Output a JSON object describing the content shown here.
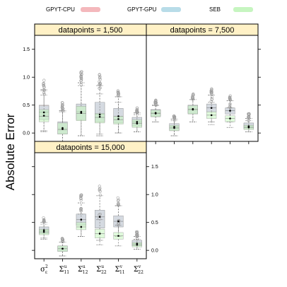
{
  "chart_data": {
    "type": "boxplot",
    "ylabel": "Absolute Error",
    "ylim": [
      -0.15,
      1.75
    ],
    "yticks": [
      0.0,
      0.5,
      1.0,
      1.5
    ],
    "ytick_labels": [
      "0.0",
      "0.5",
      "1.0",
      "1.5"
    ],
    "categories": [
      "σ_ε^2",
      "Σ_11^u",
      "Σ_12^u",
      "Σ_22^u",
      "Σ_11^v",
      "Σ_22^v"
    ],
    "category_labels": [
      {
        "base": "σ",
        "sup": "2",
        "sub": "ε"
      },
      {
        "base": "Σ",
        "sup": "u",
        "sub": "11"
      },
      {
        "base": "Σ",
        "sup": "u",
        "sub": "12"
      },
      {
        "base": "Σ",
        "sup": "u",
        "sub": "22"
      },
      {
        "base": "Σ",
        "sup": "v",
        "sub": "11"
      },
      {
        "base": "Σ",
        "sup": "v",
        "sub": "22"
      }
    ],
    "legend": [
      {
        "name": "GPYT-CPU",
        "color": "#f4b8bc"
      },
      {
        "name": "GPYT-GPU",
        "color": "#b8dce8"
      },
      {
        "name": "SEB",
        "color": "#c6f5c0"
      }
    ],
    "panels": [
      {
        "title": "datapoints = 1,500",
        "boxes": [
          [
            {
              "series": "GPYT-CPU",
              "q1": 0.24,
              "median": 0.38,
              "q3": 0.5,
              "wlow": 0.04,
              "whigh": 0.78,
              "mean": 0.37
            },
            {
              "series": "GPYT-GPU",
              "q1": 0.24,
              "median": 0.37,
              "q3": 0.49,
              "wlow": 0.04,
              "whigh": 0.76,
              "mean": 0.37
            },
            {
              "series": "SEB",
              "q1": 0.2,
              "median": 0.3,
              "q3": 0.42,
              "wlow": 0.02,
              "whigh": 0.68,
              "mean": 0.31
            }
          ],
          [
            {
              "series": "GPYT-CPU",
              "q1": -0.02,
              "median": 0.08,
              "q3": 0.2,
              "wlow": -0.15,
              "whigh": 0.4,
              "mean": 0.09
            },
            {
              "series": "GPYT-GPU",
              "q1": -0.02,
              "median": 0.08,
              "q3": 0.2,
              "wlow": -0.15,
              "whigh": 0.4,
              "mean": 0.09
            },
            {
              "series": "SEB",
              "q1": -0.02,
              "median": 0.06,
              "q3": 0.18,
              "wlow": -0.15,
              "whigh": 0.38,
              "mean": 0.07
            }
          ],
          [
            {
              "series": "GPYT-CPU",
              "q1": 0.24,
              "median": 0.38,
              "q3": 0.52,
              "wlow": -0.05,
              "whigh": 0.9,
              "mean": 0.38
            },
            {
              "series": "GPYT-GPU",
              "q1": 0.24,
              "median": 0.38,
              "q3": 0.52,
              "wlow": -0.05,
              "whigh": 0.9,
              "mean": 0.38
            },
            {
              "series": "SEB",
              "q1": 0.22,
              "median": 0.35,
              "q3": 0.48,
              "wlow": -0.05,
              "whigh": 0.85,
              "mean": 0.36
            }
          ],
          [
            {
              "series": "GPYT-CPU",
              "q1": 0.2,
              "median": 0.34,
              "q3": 0.55,
              "wlow": -0.05,
              "whigh": 0.85,
              "mean": 0.33
            },
            {
              "series": "GPYT-GPU",
              "q1": 0.2,
              "median": 0.34,
              "q3": 0.55,
              "wlow": -0.05,
              "whigh": 0.85,
              "mean": 0.33
            },
            {
              "series": "SEB",
              "q1": 0.18,
              "median": 0.28,
              "q3": 0.35,
              "wlow": -0.02,
              "whigh": 0.7,
              "mean": 0.29
            }
          ],
          [
            {
              "series": "GPYT-CPU",
              "q1": 0.18,
              "median": 0.3,
              "q3": 0.44,
              "wlow": 0.0,
              "whigh": 0.65,
              "mean": 0.3
            },
            {
              "series": "GPYT-GPU",
              "q1": 0.18,
              "median": 0.3,
              "q3": 0.44,
              "wlow": 0.0,
              "whigh": 0.65,
              "mean": 0.3
            },
            {
              "series": "SEB",
              "q1": 0.16,
              "median": 0.24,
              "q3": 0.3,
              "wlow": 0.0,
              "whigh": 0.55,
              "mean": 0.25
            }
          ],
          [
            {
              "series": "GPYT-CPU",
              "q1": 0.12,
              "median": 0.2,
              "q3": 0.28,
              "wlow": 0.02,
              "whigh": 0.36,
              "mean": 0.2
            },
            {
              "series": "GPYT-GPU",
              "q1": 0.12,
              "median": 0.2,
              "q3": 0.28,
              "wlow": 0.02,
              "whigh": 0.36,
              "mean": 0.2
            },
            {
              "series": "SEB",
              "q1": 0.1,
              "median": 0.17,
              "q3": 0.24,
              "wlow": 0.02,
              "whigh": 0.33,
              "mean": 0.17
            }
          ]
        ]
      },
      {
        "title": "datapoints = 7,500",
        "boxes": [
          [
            {
              "series": "GPYT-CPU",
              "q1": 0.3,
              "median": 0.36,
              "q3": 0.42,
              "wlow": 0.2,
              "whigh": 0.5,
              "mean": 0.36
            },
            {
              "series": "GPYT-GPU",
              "q1": 0.3,
              "median": 0.36,
              "q3": 0.42,
              "wlow": 0.2,
              "whigh": 0.5,
              "mean": 0.36
            },
            {
              "series": "SEB",
              "q1": 0.29,
              "median": 0.35,
              "q3": 0.41,
              "wlow": 0.2,
              "whigh": 0.49,
              "mean": 0.35
            }
          ],
          [
            {
              "series": "GPYT-CPU",
              "q1": 0.05,
              "median": 0.11,
              "q3": 0.17,
              "wlow": -0.05,
              "whigh": 0.25,
              "mean": 0.11
            },
            {
              "series": "GPYT-GPU",
              "q1": 0.05,
              "median": 0.11,
              "q3": 0.17,
              "wlow": -0.05,
              "whigh": 0.25,
              "mean": 0.11
            },
            {
              "series": "SEB",
              "q1": 0.04,
              "median": 0.09,
              "q3": 0.14,
              "wlow": -0.05,
              "whigh": 0.22,
              "mean": 0.09
            }
          ],
          [
            {
              "series": "GPYT-CPU",
              "q1": 0.35,
              "median": 0.43,
              "q3": 0.5,
              "wlow": 0.2,
              "whigh": 0.6,
              "mean": 0.43
            },
            {
              "series": "GPYT-GPU",
              "q1": 0.35,
              "median": 0.43,
              "q3": 0.5,
              "wlow": 0.2,
              "whigh": 0.6,
              "mean": 0.43
            },
            {
              "series": "SEB",
              "q1": 0.34,
              "median": 0.42,
              "q3": 0.49,
              "wlow": 0.2,
              "whigh": 0.6,
              "mean": 0.42
            }
          ],
          [
            {
              "series": "GPYT-CPU",
              "q1": 0.38,
              "median": 0.45,
              "q3": 0.52,
              "wlow": 0.2,
              "whigh": 0.68,
              "mean": 0.45
            },
            {
              "series": "GPYT-GPU",
              "q1": 0.38,
              "median": 0.45,
              "q3": 0.52,
              "wlow": 0.2,
              "whigh": 0.68,
              "mean": 0.45
            },
            {
              "series": "SEB",
              "q1": 0.26,
              "median": 0.32,
              "q3": 0.38,
              "wlow": 0.15,
              "whigh": 0.55,
              "mean": 0.32
            }
          ],
          [
            {
              "series": "GPYT-CPU",
              "q1": 0.34,
              "median": 0.4,
              "q3": 0.45,
              "wlow": 0.2,
              "whigh": 0.58,
              "mean": 0.4
            },
            {
              "series": "GPYT-GPU",
              "q1": 0.34,
              "median": 0.4,
              "q3": 0.45,
              "wlow": 0.2,
              "whigh": 0.58,
              "mean": 0.4
            },
            {
              "series": "SEB",
              "q1": 0.2,
              "median": 0.26,
              "q3": 0.31,
              "wlow": 0.1,
              "whigh": 0.45,
              "mean": 0.26
            }
          ],
          [
            {
              "series": "GPYT-CPU",
              "q1": 0.08,
              "median": 0.12,
              "q3": 0.18,
              "wlow": 0.02,
              "whigh": 0.26,
              "mean": 0.12
            },
            {
              "series": "GPYT-GPU",
              "q1": 0.08,
              "median": 0.12,
              "q3": 0.18,
              "wlow": 0.02,
              "whigh": 0.26,
              "mean": 0.12
            },
            {
              "series": "SEB",
              "q1": 0.06,
              "median": 0.1,
              "q3": 0.14,
              "wlow": 0.02,
              "whigh": 0.22,
              "mean": 0.1
            }
          ]
        ]
      },
      {
        "title": "datapoints = 15,000",
        "boxes": [
          [
            {
              "series": "GPYT-CPU",
              "q1": 0.3,
              "median": 0.36,
              "q3": 0.42,
              "wlow": 0.22,
              "whigh": 0.5,
              "mean": 0.36
            },
            {
              "series": "GPYT-GPU",
              "q1": 0.3,
              "median": 0.36,
              "q3": 0.42,
              "wlow": 0.22,
              "whigh": 0.5,
              "mean": 0.36
            },
            {
              "series": "SEB",
              "q1": 0.28,
              "median": 0.33,
              "q3": 0.38,
              "wlow": 0.2,
              "whigh": 0.47,
              "mean": 0.33
            }
          ],
          [
            {
              "series": "GPYT-CPU",
              "q1": -0.02,
              "median": 0.03,
              "q3": 0.08,
              "wlow": -0.1,
              "whigh": 0.15,
              "mean": 0.03
            },
            {
              "series": "GPYT-GPU",
              "q1": -0.02,
              "median": 0.03,
              "q3": 0.08,
              "wlow": -0.1,
              "whigh": 0.15,
              "mean": 0.03
            },
            {
              "series": "SEB",
              "q1": -0.02,
              "median": 0.03,
              "q3": 0.08,
              "wlow": -0.1,
              "whigh": 0.15,
              "mean": 0.03
            }
          ],
          [
            {
              "series": "GPYT-CPU",
              "q1": 0.45,
              "median": 0.55,
              "q3": 0.65,
              "wlow": 0.25,
              "whigh": 0.85,
              "mean": 0.55
            },
            {
              "series": "GPYT-GPU",
              "q1": 0.45,
              "median": 0.55,
              "q3": 0.65,
              "wlow": 0.25,
              "whigh": 0.85,
              "mean": 0.55
            },
            {
              "series": "SEB",
              "q1": 0.37,
              "median": 0.42,
              "q3": 0.5,
              "wlow": 0.25,
              "whigh": 0.65,
              "mean": 0.42
            }
          ],
          [
            {
              "series": "GPYT-CPU",
              "q1": 0.4,
              "median": 0.6,
              "q3": 0.72,
              "wlow": 0.18,
              "whigh": 0.98,
              "mean": 0.6
            },
            {
              "series": "GPYT-GPU",
              "q1": 0.4,
              "median": 0.6,
              "q3": 0.72,
              "wlow": 0.18,
              "whigh": 0.98,
              "mean": 0.6
            },
            {
              "series": "SEB",
              "q1": 0.22,
              "median": 0.3,
              "q3": 0.38,
              "wlow": 0.1,
              "whigh": 0.55,
              "mean": 0.3
            }
          ],
          [
            {
              "series": "GPYT-CPU",
              "q1": 0.42,
              "median": 0.52,
              "q3": 0.62,
              "wlow": 0.25,
              "whigh": 0.8,
              "mean": 0.52
            },
            {
              "series": "GPYT-GPU",
              "q1": 0.42,
              "median": 0.52,
              "q3": 0.62,
              "wlow": 0.25,
              "whigh": 0.8,
              "mean": 0.52
            },
            {
              "series": "SEB",
              "q1": 0.2,
              "median": 0.26,
              "q3": 0.32,
              "wlow": 0.08,
              "whigh": 0.45,
              "mean": 0.26
            }
          ],
          [
            {
              "series": "GPYT-CPU",
              "q1": 0.08,
              "median": 0.12,
              "q3": 0.18,
              "wlow": 0.02,
              "whigh": 0.25,
              "mean": 0.12
            },
            {
              "series": "GPYT-GPU",
              "q1": 0.08,
              "median": 0.12,
              "q3": 0.18,
              "wlow": 0.02,
              "whigh": 0.25,
              "mean": 0.12
            },
            {
              "series": "SEB",
              "q1": 0.06,
              "median": 0.1,
              "q3": 0.14,
              "wlow": 0.02,
              "whigh": 0.2,
              "mean": 0.1
            }
          ]
        ]
      }
    ],
    "grid": false,
    "legend_position": "top"
  },
  "colors": {
    "strip_bg": "#fff1c6",
    "panel_border": "#000000",
    "outlier": "#9e9e9e",
    "whisker": "#7a7a7a",
    "mean_dot": "#000000"
  }
}
